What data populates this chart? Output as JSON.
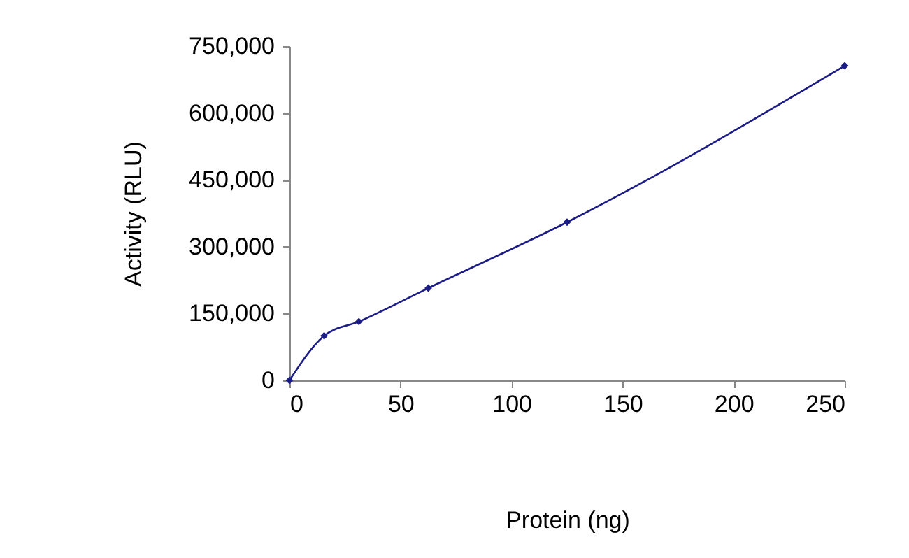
{
  "chart_data": {
    "type": "line",
    "xlabel": "Protein (ng)",
    "ylabel": "Activity (RLU)",
    "x": [
      0,
      15.6,
      31.25,
      62.5,
      125,
      250
    ],
    "series": [
      {
        "color": "#1c1c85",
        "values": [
          0,
          100000,
          132000,
          207000,
          355000,
          706000
        ]
      }
    ],
    "xlim": [
      0,
      250
    ],
    "xticks": [
      0,
      50,
      100,
      150,
      200,
      250
    ],
    "ylim": [
      0,
      750000
    ],
    "yticks": [
      {
        "value": 0,
        "label": "0"
      },
      {
        "value": 150000,
        "label": "150,000"
      },
      {
        "value": 300000,
        "label": "300,000"
      },
      {
        "value": 450000,
        "label": "450,000"
      },
      {
        "value": 600000,
        "label": "600,000"
      },
      {
        "value": 750000,
        "label": "750,000"
      }
    ],
    "grid": false,
    "marker": "diamond",
    "line_style": "solid"
  }
}
